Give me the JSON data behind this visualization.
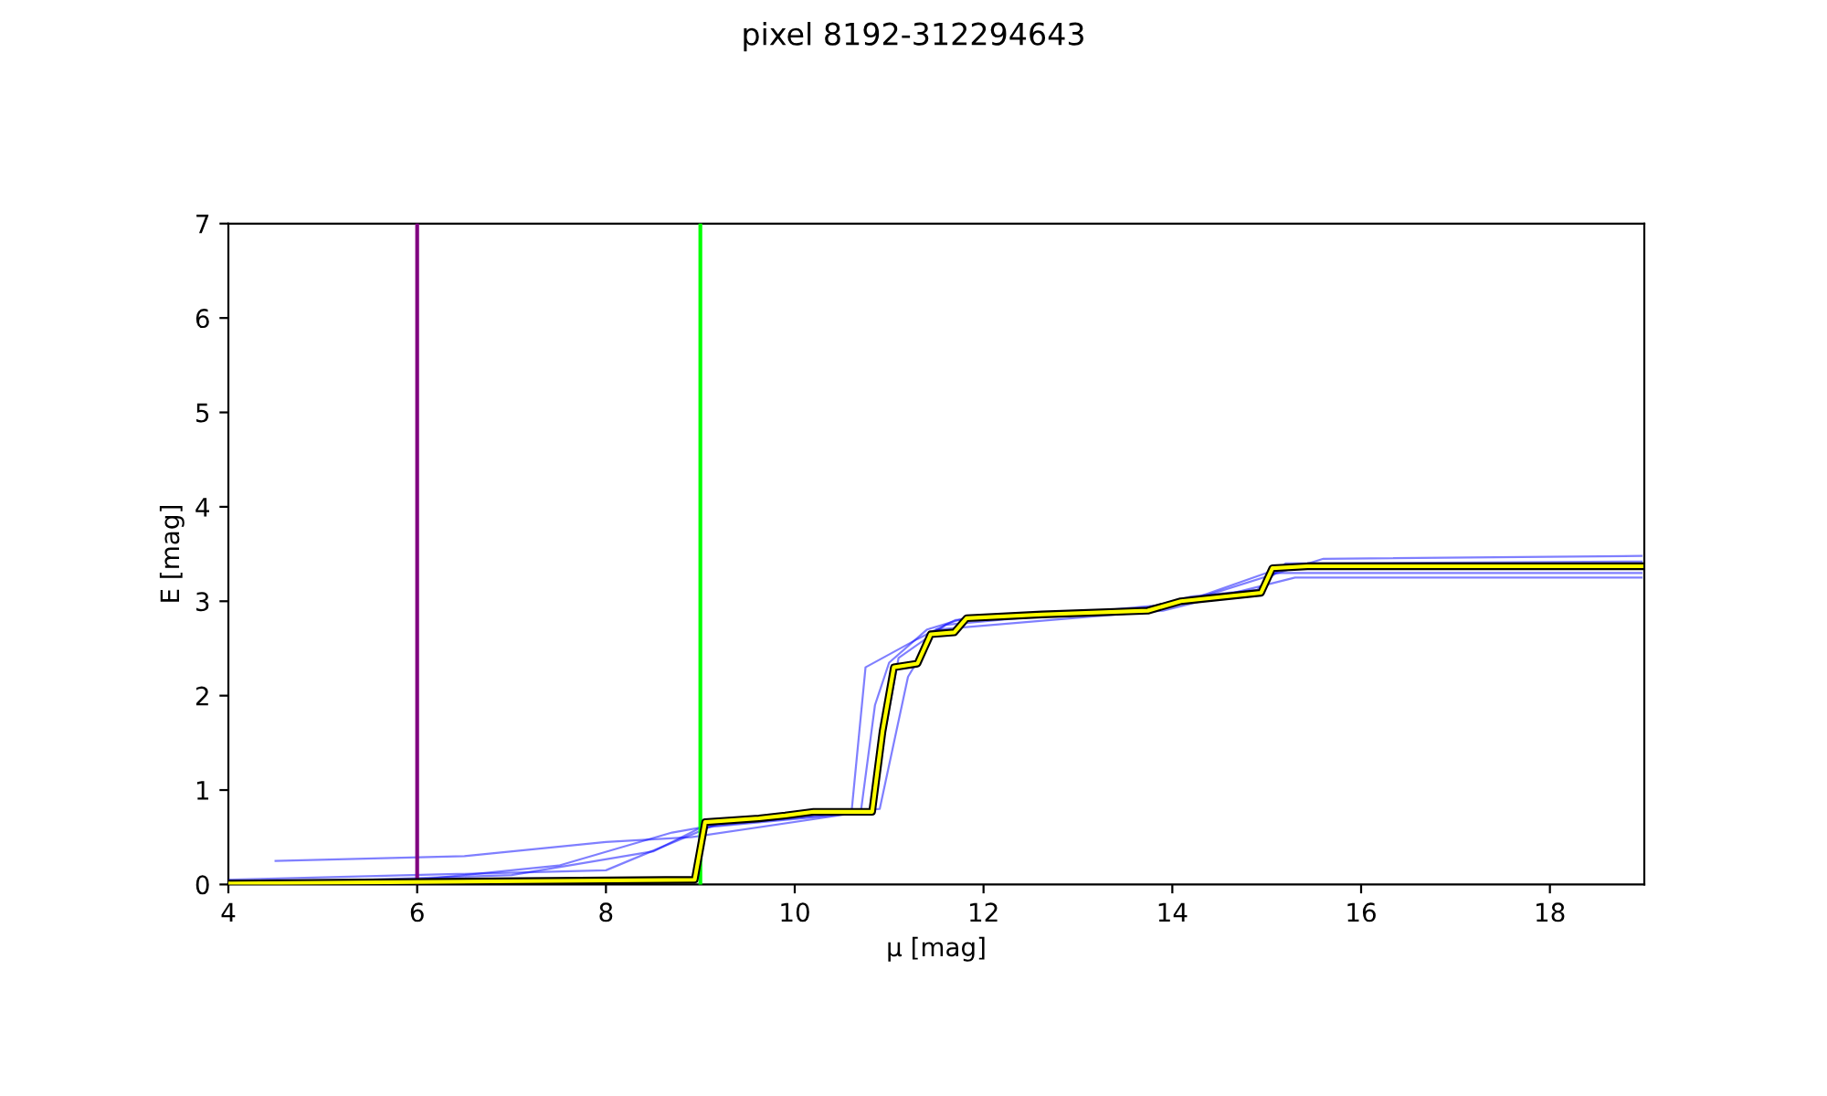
{
  "chart_data": {
    "type": "line",
    "title": "pixel 8192-312294643",
    "xlabel": "μ [mag]",
    "ylabel": "E [mag]",
    "xlim": [
      4,
      19
    ],
    "xticks": [
      4,
      6,
      8,
      10,
      12,
      14,
      16,
      18
    ],
    "ylim": [
      0,
      7
    ],
    "yticks": [
      0,
      1,
      2,
      3,
      4,
      5,
      6,
      7
    ],
    "grid": false,
    "legend": false,
    "marker": "none",
    "line_style": "solid",
    "ref_lines": [
      {
        "axis": "x",
        "value": 6,
        "color": "#800080"
      },
      {
        "axis": "x",
        "value": 9,
        "color": "#00ff00"
      }
    ],
    "series": [
      {
        "color": "#0000ff",
        "x": [
          4,
          6,
          7.5,
          8.7,
          9.1,
          10.7,
          10.85,
          11.0,
          11.4,
          11.8,
          13.7,
          14.2,
          14.9,
          15.2,
          18.97
        ],
        "values": [
          0.02,
          0.05,
          0.2,
          0.55,
          0.62,
          0.77,
          1.9,
          2.35,
          2.7,
          2.82,
          2.92,
          3.05,
          3.12,
          3.4,
          3.42
        ]
      },
      {
        "color": "#0000ff",
        "x": [
          4,
          7,
          8.5,
          9,
          10.6,
          10.75,
          11.3,
          11.7,
          14.0,
          15.0,
          18.97
        ],
        "values": [
          0,
          0.1,
          0.35,
          0.6,
          0.75,
          2.3,
          2.6,
          2.8,
          2.95,
          3.3,
          3.3
        ]
      },
      {
        "color": "#0000ff",
        "x": [
          4.5,
          6.5,
          8,
          8.9,
          10.8,
          11.1,
          11.6,
          14.1,
          15.6,
          18.97
        ],
        "values": [
          0.25,
          0.3,
          0.45,
          0.5,
          0.78,
          2.4,
          2.75,
          2.98,
          3.45,
          3.48
        ]
      },
      {
        "color": "#0000ff",
        "x": [
          4,
          8,
          9.2,
          10.9,
          11.2,
          11.5,
          13.9,
          15.3,
          18.97
        ],
        "values": [
          0.05,
          0.15,
          0.65,
          0.8,
          2.2,
          2.7,
          2.9,
          3.25,
          3.25
        ]
      },
      {
        "color": "#ffff00",
        "x": [
          4,
          8.94,
          9.05,
          9.62,
          9.9,
          10.2,
          10.82,
          10.93,
          11.05,
          11.3,
          11.44,
          11.69,
          11.82,
          12.62,
          13.74,
          14.09,
          14.94,
          15.06,
          15.43,
          18.97
        ],
        "values": [
          0.01,
          0.05,
          0.66,
          0.7,
          0.73,
          0.77,
          0.77,
          1.62,
          2.3,
          2.34,
          2.65,
          2.67,
          2.82,
          2.86,
          2.9,
          3.0,
          3.09,
          3.35,
          3.37,
          3.37
        ]
      }
    ]
  }
}
